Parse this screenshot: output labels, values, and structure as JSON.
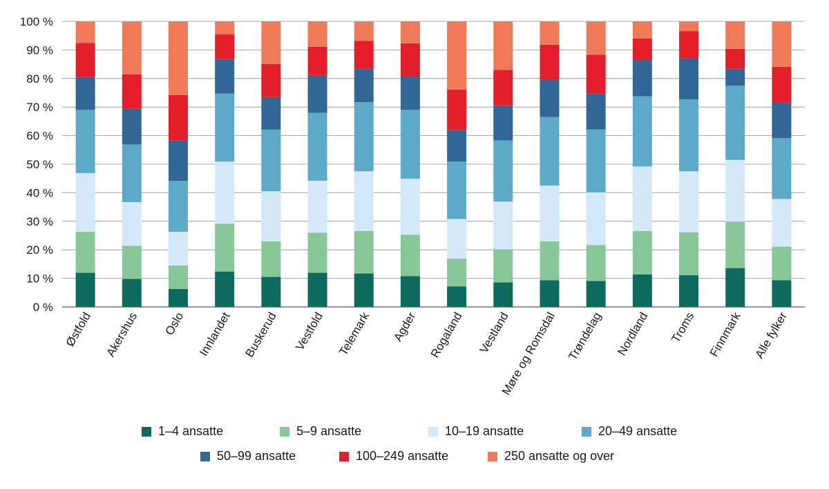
{
  "chart_data": {
    "type": "bar",
    "stacked": true,
    "title": "",
    "xlabel": "",
    "ylabel": "",
    "ylim": [
      0,
      100
    ],
    "y_ticks": [
      "0 %",
      "10 %",
      "20 %",
      "30 %",
      "40 %",
      "50 %",
      "60 %",
      "70 %",
      "80 %",
      "90 %",
      "100 %"
    ],
    "grid": true,
    "legend_position": "bottom",
    "categories": [
      "Østfold",
      "Akershus",
      "Oslo",
      "Innlandet",
      "Buskerud",
      "Vestfold",
      "Telemark",
      "Agder",
      "Rogaland",
      "Vestland",
      "Møre og Romsdal",
      "Trøndelag",
      "Nordland",
      "Troms",
      "Finnmark",
      "Alle fylker"
    ],
    "series": [
      {
        "name": "1–4 ansatte",
        "color": "#0d6b5e",
        "values": [
          12.0,
          9.8,
          6.3,
          12.4,
          10.5,
          12.0,
          11.7,
          10.8,
          7.2,
          8.6,
          9.3,
          9.1,
          11.4,
          11.1,
          13.6,
          9.3
        ]
      },
      {
        "name": "5–9 ansatte",
        "color": "#88c797",
        "values": [
          14.3,
          11.6,
          8.2,
          16.7,
          12.5,
          14.0,
          14.9,
          14.5,
          9.7,
          11.6,
          13.7,
          12.6,
          15.2,
          15.0,
          16.3,
          11.8
        ]
      },
      {
        "name": "10–19 ansatte",
        "color": "#d3e8f8",
        "values": [
          20.6,
          15.3,
          11.8,
          21.8,
          17.5,
          18.2,
          20.9,
          19.6,
          13.9,
          16.7,
          19.5,
          18.4,
          22.6,
          21.4,
          21.6,
          16.7
        ]
      },
      {
        "name": "20–49 ansatte",
        "color": "#5ca9c8",
        "values": [
          22.1,
          20.2,
          17.9,
          23.8,
          21.6,
          23.8,
          24.2,
          24.1,
          20.1,
          21.4,
          24.0,
          22.1,
          24.6,
          25.2,
          26.0,
          21.3
        ]
      },
      {
        "name": "50–99 ansatte",
        "color": "#306796",
        "values": [
          11.6,
          12.5,
          14.2,
          12.2,
          11.4,
          13.2,
          11.7,
          11.8,
          11.1,
          12.3,
          13.1,
          12.6,
          12.8,
          14.4,
          6.0,
          12.5
        ]
      },
      {
        "name": "100–249 ansatte",
        "color": "#e31e2a",
        "values": [
          11.8,
          12.0,
          15.8,
          8.6,
          11.6,
          9.9,
          9.8,
          11.5,
          14.1,
          12.4,
          12.2,
          13.5,
          7.4,
          9.5,
          6.9,
          12.5
        ]
      },
      {
        "name": "250 ansatte og over",
        "color": "#ef7a57",
        "values": [
          7.6,
          18.6,
          25.8,
          4.5,
          14.9,
          8.9,
          6.8,
          7.7,
          23.9,
          17.0,
          8.2,
          11.7,
          6.0,
          3.4,
          9.6,
          15.9
        ]
      }
    ]
  }
}
